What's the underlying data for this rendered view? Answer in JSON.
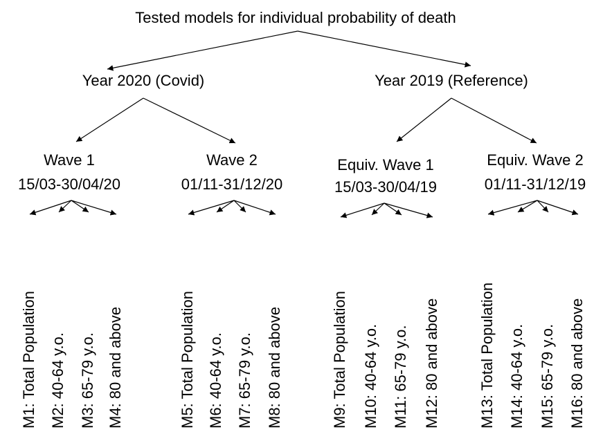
{
  "title": "Tested models for individual probability of death",
  "years": [
    {
      "label": "Year 2020 (Covid)",
      "waves": [
        {
          "name": "Wave 1",
          "dates": "15/03-30/04/20",
          "models": [
            "M1: Total Population",
            "M2: 40-64 y.o.",
            "M3: 65-79 y.o.",
            "M4: 80 and above"
          ]
        },
        {
          "name": "Wave 2",
          "dates": "01/11-31/12/20",
          "models": [
            "M5: Total Population",
            "M6: 40-64 y.o.",
            "M7: 65-79 y.o.",
            "M8: 80 and above"
          ]
        }
      ]
    },
    {
      "label": "Year 2019 (Reference)",
      "waves": [
        {
          "name": "Equiv. Wave 1",
          "dates": "15/03-30/04/19",
          "models": [
            "M9: Total Population",
            "M10: 40-64 y.o.",
            "M11: 65-79 y.o.",
            "M12: 80 and above"
          ]
        },
        {
          "name": "Equiv. Wave 2",
          "dates": "01/11-31/12/19",
          "models": [
            "M13: Total Population",
            "M14: 40-64 y.o.",
            "M15: 65-79 y.o.",
            "M16: 80 and above"
          ]
        }
      ]
    }
  ]
}
